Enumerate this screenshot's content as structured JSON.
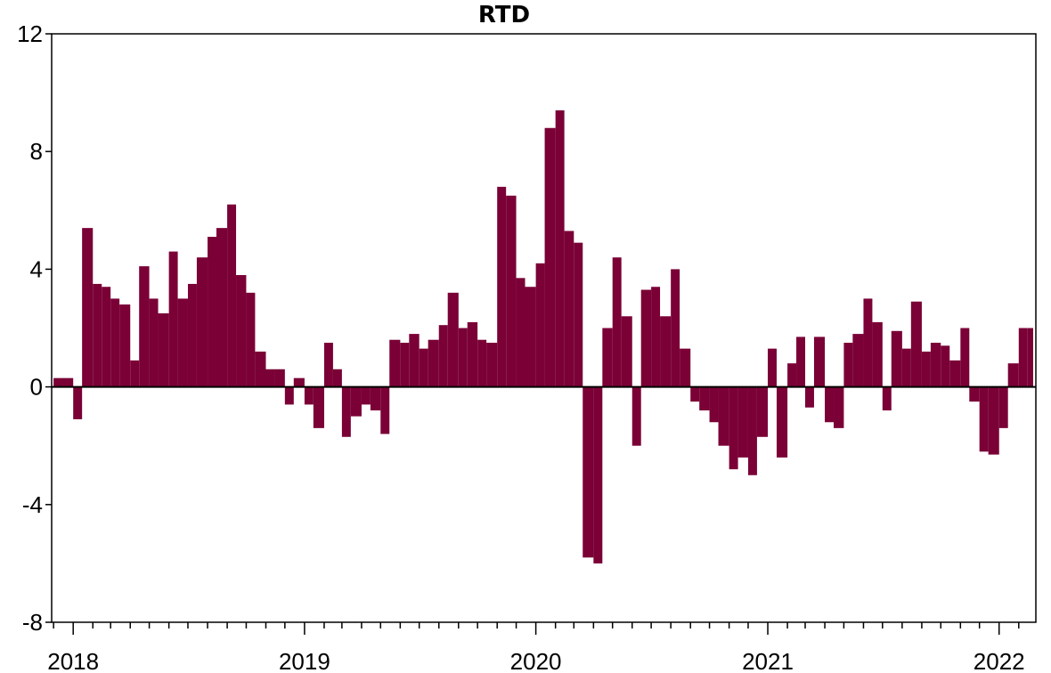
{
  "chart_data": {
    "type": "bar",
    "title": "RTD",
    "xlabel": "",
    "ylabel": "",
    "ylim": [
      -8,
      12
    ],
    "yticks": [
      -8,
      -4,
      0,
      4,
      8,
      12
    ],
    "ytick_labels": [
      "-8",
      "-4",
      "0",
      "4",
      "8",
      "12"
    ],
    "x_ticks": [
      {
        "x": "2018-01-01",
        "label": "2018"
      },
      {
        "x": "2019-01-01",
        "label": "2019"
      },
      {
        "x": "2020-01-01",
        "label": "2020"
      },
      {
        "x": "2021-01-01",
        "label": "2021"
      },
      {
        "x": "2022-01-01",
        "label": "2022"
      }
    ],
    "xlim": [
      "2017-11-28",
      "2022-02-28"
    ],
    "grid": false,
    "legend": "none",
    "colors": {
      "bars": "#7a0036",
      "zero_line": "#000000",
      "axis": "#000000"
    },
    "series": [
      {
        "x": [
          "2017-12-01",
          "2018-01-01",
          "2018-01-15",
          "2018-02-01",
          "2018-02-15",
          "2018-03-01",
          "2018-03-15",
          "2018-04-01",
          "2018-04-15",
          "2018-05-01",
          "2018-05-15",
          "2018-06-01",
          "2018-06-15",
          "2018-07-01",
          "2018-07-15",
          "2018-08-01",
          "2018-08-15",
          "2018-09-01",
          "2018-09-15",
          "2018-10-01",
          "2018-10-15",
          "2018-11-01",
          "2018-11-15",
          "2018-12-01",
          "2018-12-15",
          "2019-01-01",
          "2019-01-15",
          "2019-02-01",
          "2019-02-15",
          "2019-03-01",
          "2019-03-15",
          "2019-04-01",
          "2019-04-15",
          "2019-05-01",
          "2019-05-15",
          "2019-06-01",
          "2019-06-15",
          "2019-07-01",
          "2019-07-15",
          "2019-08-01",
          "2019-08-15",
          "2019-09-01",
          "2019-09-15",
          "2019-10-01",
          "2019-10-15",
          "2019-11-01",
          "2019-11-15",
          "2019-12-01",
          "2019-12-15",
          "2020-01-01",
          "2020-01-15",
          "2020-02-01",
          "2020-02-15",
          "2020-03-01",
          "2020-03-15",
          "2020-04-01",
          "2020-04-15",
          "2020-05-01",
          "2020-05-15",
          "2020-06-01",
          "2020-06-15",
          "2020-07-01",
          "2020-07-15",
          "2020-08-01",
          "2020-08-15",
          "2020-09-01",
          "2020-09-15",
          "2020-10-01",
          "2020-10-15",
          "2020-11-01",
          "2020-11-15",
          "2020-12-01",
          "2020-12-15",
          "2021-01-01",
          "2021-01-15",
          "2021-02-01",
          "2021-02-15",
          "2021-03-01",
          "2021-03-15",
          "2021-04-01",
          "2021-04-15",
          "2021-05-01",
          "2021-05-15",
          "2021-06-01",
          "2021-06-15",
          "2021-07-01",
          "2021-07-15",
          "2021-08-01",
          "2021-08-15",
          "2021-09-01",
          "2021-09-15",
          "2021-10-01",
          "2021-10-15",
          "2021-11-01",
          "2021-11-15",
          "2021-12-01",
          "2021-12-15",
          "2022-01-01",
          "2022-01-15",
          "2022-02-01",
          "2022-02-15"
        ],
        "values": [
          0.3,
          -1.1,
          5.4,
          3.5,
          3.4,
          3.0,
          2.8,
          0.9,
          4.1,
          3.0,
          2.5,
          4.6,
          3.0,
          3.5,
          4.4,
          5.1,
          5.4,
          6.2,
          3.8,
          3.2,
          1.2,
          0.6,
          0.6,
          -0.6,
          0.3,
          -0.6,
          -1.4,
          1.5,
          0.6,
          -1.7,
          -1.0,
          -0.6,
          -0.8,
          -1.6,
          1.6,
          1.5,
          1.8,
          1.3,
          1.6,
          2.1,
          3.2,
          2.0,
          2.2,
          1.6,
          1.5,
          6.8,
          6.5,
          3.7,
          3.4,
          4.2,
          8.8,
          9.4,
          5.3,
          4.9,
          -5.8,
          -6.0,
          2.0,
          4.4,
          2.4,
          -2.0,
          3.3,
          3.4,
          2.4,
          4.0,
          1.3,
          -0.5,
          -0.8,
          -1.2,
          -2.0,
          -2.8,
          -2.4,
          -3.0,
          -1.7,
          1.3,
          -2.4,
          0.8,
          1.7,
          -0.7,
          1.7,
          -1.2,
          -1.4,
          1.5,
          1.8,
          3.0,
          2.2,
          -0.8,
          1.9,
          1.3,
          2.9,
          1.2,
          1.5,
          1.4,
          0.9,
          2.0,
          -0.5,
          -2.2,
          -2.3,
          -1.4,
          0.8,
          2.0,
          2.0
        ]
      }
    ]
  }
}
